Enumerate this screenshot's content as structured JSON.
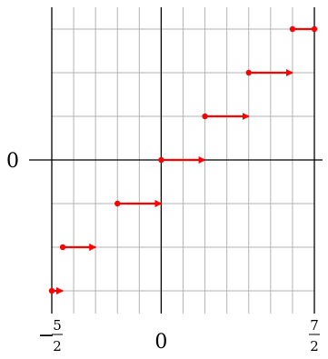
{
  "chart_data": {
    "type": "line",
    "title": "",
    "xlabel": "",
    "ylabel": "",
    "xlim": [
      -2.5,
      3.5
    ],
    "ylim": [
      -3,
      3
    ],
    "grid": true,
    "grid_x_step": 0.5,
    "grid_y_step": 1,
    "color": "#ff0000",
    "x_ticks": [
      {
        "value": -2.5,
        "sign": "−",
        "num": "5",
        "den": "2"
      },
      {
        "value": 0,
        "label": "0"
      },
      {
        "value": 3.5,
        "sign": "",
        "num": "7",
        "den": "2"
      }
    ],
    "y_ticks": [
      {
        "value": 0,
        "label": "0"
      }
    ],
    "segments": [
      {
        "x_start": -2.5,
        "x_end": -2.25,
        "y": -3,
        "start_closed": true,
        "end": "arrow"
      },
      {
        "x_start": -2.25,
        "x_end": -1.5,
        "y": -2,
        "start_closed": true,
        "end": "arrow"
      },
      {
        "x_start": -1.0,
        "x_end": 0,
        "y": -1,
        "start_closed": true,
        "end": "arrow"
      },
      {
        "x_start": 0,
        "x_end": 1.0,
        "y": 0,
        "start_closed": true,
        "end": "arrow"
      },
      {
        "x_start": 1.0,
        "x_end": 2.0,
        "y": 1,
        "start_closed": true,
        "end": "arrow"
      },
      {
        "x_start": 2.0,
        "x_end": 3.0,
        "y": 2,
        "start_closed": true,
        "end": "arrow"
      },
      {
        "x_start": 3.0,
        "x_end": 3.5,
        "y": 3,
        "start_closed": true,
        "end": "dot"
      }
    ]
  }
}
